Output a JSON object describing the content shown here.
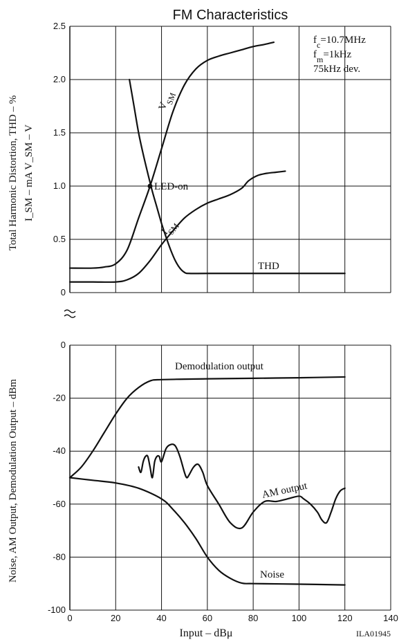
{
  "chart_data": [
    {
      "type": "line",
      "title": "FM Characteristics",
      "ylabel_lines": [
        "Total Harmonic Distortion, THD  –  %",
        "I_SM  –  mA   V_SM  –  V"
      ],
      "ylim": [
        0,
        2.5
      ],
      "yticks": [
        "2.5",
        "2.0",
        "1.5",
        "1.0",
        "0.5",
        "0"
      ],
      "xlim": [
        0,
        140
      ],
      "grid": true,
      "annotation": {
        "fc": "f_c=10.7MHz",
        "fm": "f_m=1kHz",
        "dev": "75kHz dev."
      },
      "marker": {
        "label": "LED-on",
        "x": 35,
        "y": 1.0
      },
      "series": [
        {
          "name": "V_SM",
          "x": [
            0,
            10,
            15,
            20,
            25,
            30,
            35,
            40,
            45,
            50,
            55,
            60,
            65,
            70,
            75,
            80,
            85,
            89
          ],
          "y": [
            0.23,
            0.23,
            0.24,
            0.27,
            0.4,
            0.7,
            1.0,
            1.35,
            1.7,
            1.95,
            2.1,
            2.18,
            2.22,
            2.25,
            2.28,
            2.31,
            2.33,
            2.35
          ]
        },
        {
          "name": "I_SM",
          "x": [
            0,
            10,
            20,
            25,
            30,
            35,
            40,
            45,
            50,
            55,
            60,
            65,
            70,
            75,
            78,
            82,
            86,
            90,
            94
          ],
          "y": [
            0.1,
            0.1,
            0.1,
            0.12,
            0.18,
            0.3,
            0.45,
            0.58,
            0.7,
            0.78,
            0.84,
            0.88,
            0.92,
            0.98,
            1.05,
            1.1,
            1.12,
            1.13,
            1.14
          ]
        },
        {
          "name": "THD",
          "x": [
            26,
            28,
            30,
            32,
            34,
            36,
            38,
            40,
            42,
            44,
            46,
            48,
            50,
            52,
            60,
            80,
            100,
            120
          ],
          "y": [
            2.0,
            1.75,
            1.5,
            1.3,
            1.12,
            0.95,
            0.8,
            0.65,
            0.52,
            0.4,
            0.3,
            0.23,
            0.19,
            0.18,
            0.18,
            0.18,
            0.18,
            0.18
          ]
        }
      ]
    },
    {
      "type": "line",
      "ylabel": "Noise, AM Output, Demodulation Output  –  dBm",
      "xlabel": "Input  –  dBμ",
      "ylim": [
        -100,
        0
      ],
      "yticks": [
        "0",
        "-20",
        "-40",
        "-60",
        "-80",
        "-100"
      ],
      "xlim": [
        0,
        140
      ],
      "xticks": [
        "0",
        "20",
        "40",
        "60",
        "80",
        "100",
        "120",
        "140"
      ],
      "grid": true,
      "figure_id": "ILA01945",
      "series": [
        {
          "name": "Demodulation output",
          "x": [
            0,
            5,
            10,
            15,
            20,
            25,
            30,
            35,
            40,
            60,
            80,
            100,
            120
          ],
          "y": [
            -50,
            -46,
            -40,
            -33,
            -26,
            -20,
            -16,
            -13.5,
            -13,
            -12.7,
            -12.5,
            -12.3,
            -12
          ]
        },
        {
          "name": "AM output",
          "x": [
            30,
            31,
            32,
            33,
            34,
            35,
            36,
            37,
            38,
            39,
            40,
            42,
            44,
            46,
            48,
            50,
            51,
            52,
            54,
            56,
            58,
            60,
            65,
            70,
            75,
            80,
            85,
            90,
            95,
            100,
            102,
            105,
            108,
            110,
            112,
            114,
            116,
            118,
            120
          ],
          "y": [
            -46,
            -48,
            -44,
            -42,
            -42,
            -46,
            -50,
            -44,
            -42,
            -42,
            -44,
            -39,
            -37.5,
            -38,
            -42,
            -48,
            -50,
            -49,
            -46,
            -45,
            -48,
            -53,
            -60,
            -67,
            -69,
            -63,
            -59,
            -59,
            -58,
            -57,
            -58,
            -60,
            -63,
            -66,
            -67,
            -63,
            -58,
            -55,
            -54
          ]
        },
        {
          "name": "Noise",
          "x": [
            0,
            10,
            20,
            30,
            40,
            45,
            50,
            55,
            60,
            65,
            70,
            75,
            80,
            100,
            120
          ],
          "y": [
            -50,
            -51,
            -52,
            -54,
            -58,
            -62,
            -67,
            -73,
            -80,
            -85,
            -88,
            -89.8,
            -90,
            -90.2,
            -90.5
          ]
        }
      ]
    }
  ]
}
